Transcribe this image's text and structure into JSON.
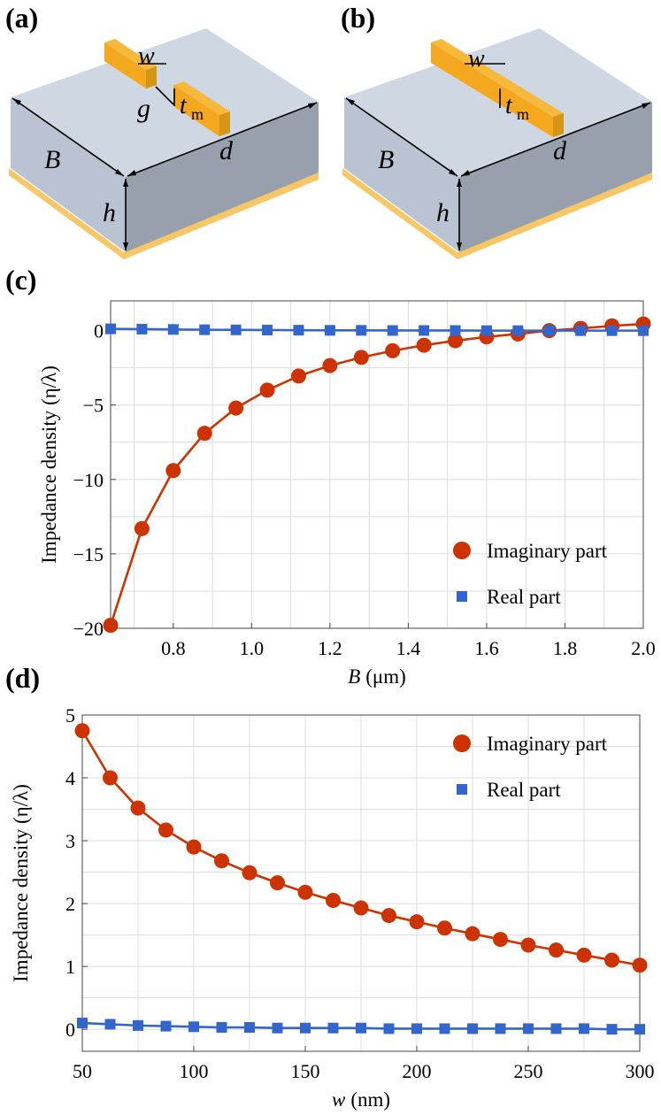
{
  "panels": {
    "a": {
      "label": "(a)",
      "w": "w",
      "g": "g",
      "t": "t",
      "t_sub": "m",
      "B": "B",
      "d": "d",
      "h": "h"
    },
    "b": {
      "label": "(b)",
      "w": "w",
      "t": "t",
      "t_sub": "m",
      "B": "B",
      "d": "d",
      "h": "h"
    }
  },
  "colors": {
    "substrate_top": "#cfd7e2",
    "substrate_left": "#b9c3d1",
    "substrate_right": "#98a0ad",
    "ground": "#f7c766",
    "bar_top": "#f7b93a",
    "bar_front": "#f4a820",
    "bar_side": "#d49614",
    "imag_color": "#cc3300",
    "real_color": "#3366cc"
  },
  "chart_data": [
    {
      "panel_label": "(c)",
      "type": "line",
      "xlabel_var": "B",
      "xlabel_unit": "(μm)",
      "ylabel": "Impedance  density (η/λ)",
      "xlim": [
        0.64,
        2.0
      ],
      "ylim": [
        -20,
        2
      ],
      "xticks": [
        0.8,
        1.0,
        1.2,
        1.4,
        1.6,
        1.8,
        2.0
      ],
      "xtick_labels": [
        "0.8",
        "1.0",
        "1.2",
        "1.4",
        "1.6",
        "1.8",
        "2.0"
      ],
      "yticks": [
        -20,
        -15,
        -10,
        -5,
        0
      ],
      "ytick_labels": [
        "−20",
        "−15",
        "−10",
        "−5",
        "0"
      ],
      "grid": true,
      "legend": "bottom-right",
      "series": [
        {
          "name": "Imaginary part",
          "marker": "circle",
          "x": [
            0.64,
            0.72,
            0.8,
            0.88,
            0.96,
            1.04,
            1.12,
            1.2,
            1.28,
            1.36,
            1.44,
            1.52,
            1.6,
            1.68,
            1.76,
            1.84,
            1.92,
            2.0
          ],
          "y": [
            -19.8,
            -13.3,
            -9.4,
            -6.9,
            -5.2,
            -4.0,
            -3.05,
            -2.35,
            -1.8,
            -1.35,
            -0.98,
            -0.68,
            -0.42,
            -0.22,
            0.0,
            0.15,
            0.32,
            0.45
          ]
        },
        {
          "name": "Real part",
          "marker": "square",
          "x": [
            0.64,
            0.72,
            0.8,
            0.88,
            0.96,
            1.04,
            1.12,
            1.2,
            1.28,
            1.36,
            1.44,
            1.52,
            1.6,
            1.68,
            1.76,
            1.84,
            1.92,
            2.0
          ],
          "y": [
            0.12,
            0.1,
            0.08,
            0.06,
            0.05,
            0.04,
            0.03,
            0.02,
            0.02,
            0.01,
            0.01,
            0.01,
            0.0,
            0.0,
            0.0,
            0.0,
            0.0,
            0.0
          ]
        }
      ]
    },
    {
      "panel_label": "(d)",
      "type": "line",
      "xlabel_var": "w",
      "xlabel_unit": "(nm)",
      "ylabel": "Impedance  density (η/λ)",
      "xlim": [
        50,
        300
      ],
      "ylim": [
        -0.35,
        5
      ],
      "xticks": [
        50,
        100,
        150,
        200,
        250,
        300
      ],
      "xtick_labels": [
        "50",
        "100",
        "150",
        "200",
        "250",
        "300"
      ],
      "yticks": [
        0,
        1,
        2,
        3,
        4,
        5
      ],
      "ytick_labels": [
        "0",
        "1",
        "2",
        "3",
        "4",
        "5"
      ],
      "grid": true,
      "legend": "top-right",
      "series": [
        {
          "name": "Imaginary part",
          "marker": "circle",
          "x": [
            50,
            62.5,
            75,
            87.5,
            100,
            112.5,
            125,
            137.5,
            150,
            162.5,
            175,
            187.5,
            200,
            212.5,
            225,
            237.5,
            250,
            262.5,
            275,
            287.5,
            300
          ],
          "y": [
            4.75,
            4.0,
            3.52,
            3.17,
            2.9,
            2.68,
            2.49,
            2.33,
            2.18,
            2.05,
            1.93,
            1.81,
            1.71,
            1.61,
            1.52,
            1.43,
            1.34,
            1.26,
            1.18,
            1.1,
            1.02
          ]
        },
        {
          "name": "Real part",
          "marker": "square",
          "x": [
            50,
            62.5,
            75,
            87.5,
            100,
            112.5,
            125,
            137.5,
            150,
            162.5,
            175,
            187.5,
            200,
            212.5,
            225,
            237.5,
            250,
            262.5,
            275,
            287.5,
            300
          ],
          "y": [
            0.1,
            0.08,
            0.06,
            0.05,
            0.04,
            0.03,
            0.03,
            0.02,
            0.02,
            0.02,
            0.02,
            0.01,
            0.01,
            0.01,
            0.01,
            0.01,
            0.01,
            0.01,
            0.01,
            0.0,
            0.0
          ]
        }
      ]
    }
  ]
}
